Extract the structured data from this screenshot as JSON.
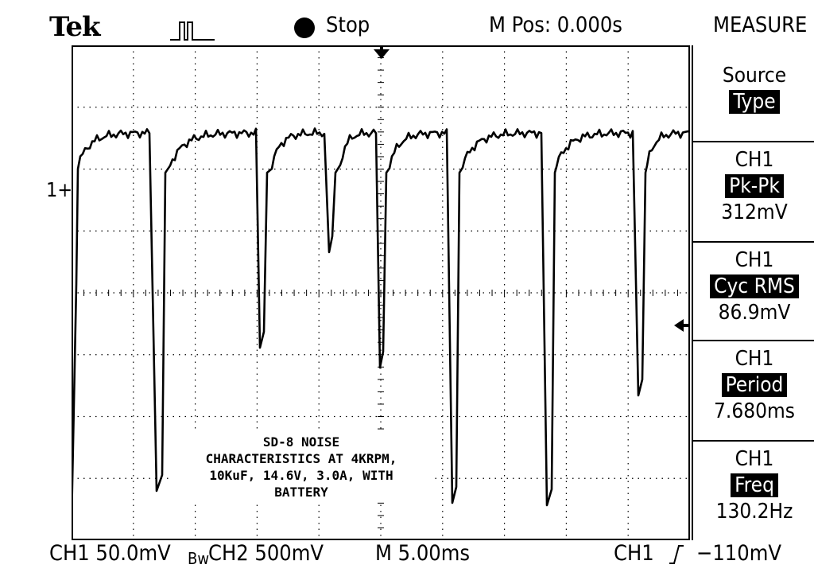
{
  "header": {
    "brand": "Tek",
    "acq_icon": "pulse-trigger-icon",
    "run_state": "Stop",
    "horizontal_position": "M Pos: 0.000s",
    "menu_title": "MEASURE"
  },
  "display": {
    "ch1_marker": "1+",
    "annotation": [
      "SD-8 NOISE",
      "CHARACTERISTICS AT 4KRPM,",
      "10KuF, 14.6V, 3.0A, WITH",
      "BATTERY"
    ]
  },
  "measure_menu": {
    "source_type": {
      "label": "Source",
      "highlight": "Type"
    },
    "measurements": [
      {
        "source": "CH1",
        "type": "Pk-Pk",
        "value": "312mV"
      },
      {
        "source": "CH1",
        "type": "Cyc RMS",
        "value": "86.9mV"
      },
      {
        "source": "CH1",
        "type": "Period",
        "value": "7.680ms"
      },
      {
        "source": "CH1",
        "type": "Freq",
        "value": "130.2Hz"
      }
    ]
  },
  "status_bar": {
    "ch1_scale": "CH1   50.0mV",
    "bw_flag": "Bw",
    "ch2_scale": "CH2   500mV",
    "timebase": "M 5.00ms",
    "trigger_source": "CH1",
    "trigger_level": "−110mV"
  },
  "colors": {
    "background": "#ffffff",
    "foreground": "#000000"
  }
}
